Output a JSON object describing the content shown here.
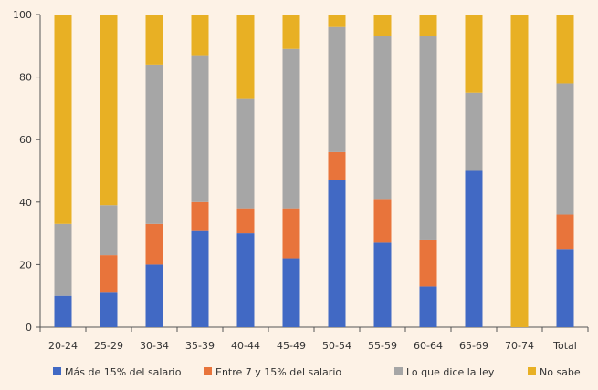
{
  "chart_data": {
    "type": "bar",
    "stacked": true,
    "categories": [
      "20-24",
      "25-29",
      "30-34",
      "35-39",
      "40-44",
      "45-49",
      "50-54",
      "55-59",
      "60-64",
      "65-69",
      "70-74",
      "Total"
    ],
    "series": [
      {
        "name": "Más de 15% del salario",
        "color": "#4169c4",
        "values": [
          10,
          11,
          20,
          31,
          30,
          22,
          47,
          27,
          13,
          50,
          0,
          25
        ]
      },
      {
        "name": "Entre 7 y 15% del salario",
        "color": "#e8743b",
        "values": [
          0,
          12,
          13,
          9,
          8,
          16,
          9,
          14,
          15,
          0,
          0,
          11
        ]
      },
      {
        "name": "Lo que dice la ley",
        "color": "#a6a6a6",
        "values": [
          23,
          16,
          51,
          47,
          35,
          51,
          40,
          52,
          65,
          25,
          0,
          42
        ]
      },
      {
        "name": "No sabe",
        "color": "#e8b024",
        "values": [
          67,
          61,
          16,
          13,
          27,
          11,
          4,
          7,
          7,
          25,
          100,
          22
        ]
      }
    ],
    "ylim": [
      0,
      100
    ],
    "yticks": [
      0,
      20,
      40,
      60,
      80,
      100
    ],
    "title": "",
    "xlabel": "",
    "ylabel": "",
    "legend_position": "bottom"
  }
}
